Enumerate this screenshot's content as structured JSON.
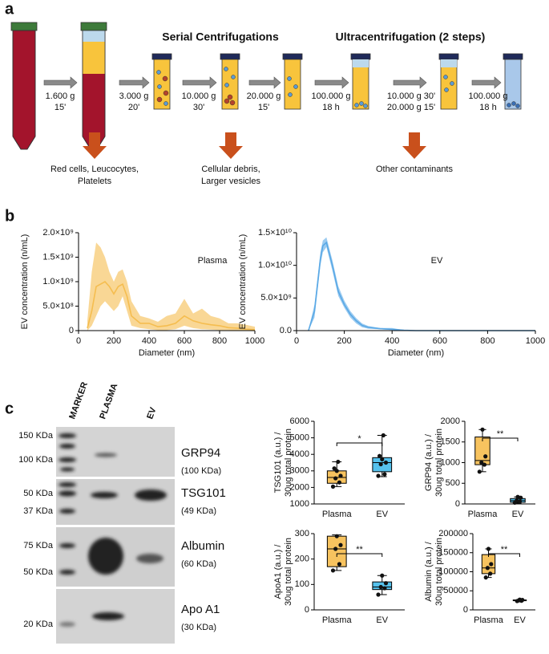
{
  "figure": {
    "labels": [
      "a",
      "b",
      "c"
    ]
  },
  "panel_a": {
    "headings": [
      "Serial Centrifugations",
      "Ultracentrifugation (2 steps)"
    ],
    "steps": [
      [
        "1.600 g",
        "15'"
      ],
      [
        "3.000 g",
        "20'"
      ],
      [
        "10.000 g",
        "30'"
      ],
      [
        "20.000 g",
        "15'"
      ],
      [
        "100.000 g",
        "18 h"
      ],
      [
        "10.000 g 30'",
        "20.000 g 15'"
      ],
      [
        "100.000 g",
        "18 h"
      ]
    ],
    "removed": [
      [
        "Red cells, Leucocytes,",
        "Platelets"
      ],
      [
        "Cellular debris,",
        "Larger vesicles"
      ],
      [
        "Other contaminants"
      ]
    ]
  },
  "panel_c": {
    "lanes": [
      "MARKER",
      "PLASMA",
      "EV"
    ],
    "blots": [
      {
        "name": "GRP94",
        "size": "(100 KDa)",
        "markers": [
          "150 KDa",
          "100 KDa"
        ]
      },
      {
        "name": "TSG101",
        "size": "(49 KDa)",
        "markers": [
          "50 KDa",
          "37 KDa"
        ]
      },
      {
        "name": "Albumin",
        "size": "(60 KDa)",
        "markers": [
          "75 KDa",
          "50 KDa"
        ]
      },
      {
        "name": "Apo A1",
        "size": "(30 KDa)",
        "markers": [
          "20 KDa"
        ]
      }
    ]
  },
  "chart_data": [
    {
      "type": "area",
      "title": "Plasma",
      "xlabel": "Diameter (nm)",
      "ylabel": "EV concentration (n/mL)",
      "color": "#f5bd4f",
      "x": [
        50,
        75,
        100,
        125,
        150,
        175,
        200,
        225,
        250,
        275,
        300,
        350,
        400,
        450,
        500,
        550,
        600,
        650,
        700,
        750,
        800,
        850,
        900,
        950,
        1000
      ],
      "values": [
        50000000.0,
        400000000.0,
        900000000.0,
        950000000.0,
        1000000000.0,
        900000000.0,
        750000000.0,
        900000000.0,
        950000000.0,
        700000000.0,
        300000000.0,
        150000000.0,
        150000000.0,
        80000000.0,
        100000000.0,
        150000000.0,
        300000000.0,
        200000000.0,
        150000000.0,
        120000000.0,
        100000000.0,
        60000000.0,
        50000000.0,
        30000000.0,
        20000000.0
      ],
      "upper": [
        200000000.0,
        1200000000.0,
        1800000000.0,
        1700000000.0,
        1500000000.0,
        1200000000.0,
        1000000000.0,
        1200000000.0,
        1250000000.0,
        1000000000.0,
        600000000.0,
        300000000.0,
        250000000.0,
        180000000.0,
        300000000.0,
        350000000.0,
        650000000.0,
        350000000.0,
        450000000.0,
        300000000.0,
        250000000.0,
        150000000.0,
        150000000.0,
        120000000.0,
        80000000.0
      ],
      "lower": [
        0,
        100000000.0,
        300000000.0,
        500000000.0,
        600000000.0,
        500000000.0,
        400000000.0,
        500000000.0,
        700000000.0,
        400000000.0,
        100000000.0,
        50000000.0,
        30000000.0,
        10000000.0,
        10000000.0,
        30000000.0,
        100000000.0,
        50000000.0,
        30000000.0,
        20000000.0,
        10000000.0,
        10000000.0,
        0,
        0,
        0
      ],
      "xlim": [
        0,
        1000
      ],
      "xticks": [
        0,
        200,
        400,
        600,
        800,
        1000
      ],
      "ylim": [
        0,
        2000000000.0
      ],
      "yticks": [
        0,
        {
          "value": 500000000.0,
          "label": "5.0×10⁸"
        },
        {
          "value": 1000000000.0,
          "label": "1.0×10⁹"
        },
        {
          "value": 1500000000.0,
          "label": "1.5×10⁹"
        },
        {
          "value": 2000000000.0,
          "label": "2.0×10⁹"
        }
      ]
    },
    {
      "type": "area",
      "title": "EV",
      "xlabel": "Diameter (nm)",
      "ylabel": "EV concentration (n/mL)",
      "color": "#5aa9e6",
      "x": [
        50,
        75,
        100,
        110,
        125,
        150,
        175,
        200,
        225,
        250,
        275,
        300,
        350,
        400,
        450,
        500,
        600,
        700,
        800,
        900,
        1000
      ],
      "values": [
        0,
        3000000000.0,
        11000000000.0,
        13000000000.0,
        13500000000.0,
        10000000000.0,
        6000000000.0,
        4000000000.0,
        2500000000.0,
        1500000000.0,
        800000000.0,
        500000000.0,
        300000000.0,
        200000000.0,
        50000000.0,
        0,
        0,
        0,
        0,
        0,
        0
      ],
      "upper": [
        100000000.0,
        4000000000.0,
        12000000000.0,
        13800000000.0,
        14300000000.0,
        10800000000.0,
        6800000000.0,
        4600000000.0,
        3000000000.0,
        1900000000.0,
        1100000000.0,
        700000000.0,
        400000000.0,
        400000000.0,
        100000000.0,
        50000000.0,
        20000000.0,
        20000000.0,
        20000000.0,
        20000000.0,
        20000000.0
      ],
      "lower": [
        0,
        2000000000.0,
        10000000000.0,
        12000000000.0,
        12800000000.0,
        9200000000.0,
        5300000000.0,
        3500000000.0,
        2000000000.0,
        1100000000.0,
        500000000.0,
        300000000.0,
        200000000.0,
        100000000.0,
        0,
        0,
        0,
        0,
        0,
        0,
        0
      ],
      "xlim": [
        0,
        1000
      ],
      "xticks": [
        0,
        200,
        400,
        600,
        800,
        1000
      ],
      "ylim": [
        0,
        15000000000.0
      ],
      "yticks": [
        {
          "value": 0,
          "label": "0.0"
        },
        {
          "value": 5000000000.0,
          "label": "5.0×10⁹"
        },
        {
          "value": 10000000000.0,
          "label": "1.0×10¹⁰"
        },
        {
          "value": 15000000000.0,
          "label": "1.5×10¹⁰"
        }
      ]
    },
    {
      "type": "box",
      "ylabel": [
        "TSG101 (a.u.) /",
        "30ug total protein"
      ],
      "categories": [
        "Plasma",
        "EV"
      ],
      "colors": [
        "#f7c35f",
        "#56c1ec"
      ],
      "significance": "*",
      "boxes": [
        {
          "min": 2050,
          "q1": 2250,
          "median": 2600,
          "q3": 3000,
          "max": 3550,
          "points": [
            2050,
            2300,
            2550,
            2700,
            3000,
            3150,
            3550
          ]
        },
        {
          "min": 2650,
          "q1": 2950,
          "median": 3500,
          "q3": 3800,
          "max": 5150,
          "points": [
            2700,
            2800,
            3400,
            3500,
            3700,
            3900,
            5150
          ]
        }
      ],
      "ylim": [
        1000,
        6000
      ],
      "yticks": [
        1000,
        2000,
        3000,
        4000,
        5000,
        6000
      ]
    },
    {
      "type": "box",
      "ylabel": [
        "GRP94 (a.u.) /",
        "30ug total protein"
      ],
      "categories": [
        "Plasma",
        "EV"
      ],
      "colors": [
        "#f7c35f",
        "#56c1ec"
      ],
      "significance": "**",
      "boxes": [
        {
          "min": 780,
          "q1": 950,
          "median": 1050,
          "q3": 1620,
          "max": 1800,
          "points": [
            780,
            950,
            1000,
            1150,
            1800
          ]
        },
        {
          "min": 20,
          "q1": 40,
          "median": 80,
          "q3": 130,
          "max": 170,
          "points": [
            30,
            60,
            80,
            150,
            170
          ]
        }
      ],
      "ylim": [
        0,
        2000
      ],
      "yticks": [
        0,
        500,
        1000,
        1500,
        2000
      ]
    },
    {
      "type": "box",
      "ylabel": [
        "ApoA1 (a.u.) /",
        "30ug total protein"
      ],
      "categories": [
        "Plasma",
        "EV"
      ],
      "colors": [
        "#f7c35f",
        "#56c1ec"
      ],
      "significance": "**",
      "boxes": [
        {
          "min": 155,
          "q1": 170,
          "median": 240,
          "q3": 290,
          "max": 295,
          "points": [
            155,
            180,
            240,
            255,
            290
          ]
        },
        {
          "min": 60,
          "q1": 80,
          "median": 90,
          "q3": 110,
          "max": 135,
          "points": [
            60,
            85,
            90,
            105,
            135
          ]
        }
      ],
      "ylim": [
        0,
        300
      ],
      "yticks": [
        0,
        100,
        200,
        300
      ]
    },
    {
      "type": "box",
      "ylabel": [
        "Albumin (a.u.) /",
        "30ug total protein"
      ],
      "categories": [
        "Plasma",
        "EV"
      ],
      "colors": [
        "#f7c35f",
        "#56c1ec"
      ],
      "significance": "**",
      "boxes": [
        {
          "min": 85000,
          "q1": 95000,
          "median": 110000,
          "q3": 145000,
          "max": 160000,
          "points": [
            85000,
            95000,
            110000,
            120000,
            160000
          ]
        },
        {
          "min": 23000,
          "q1": 24000,
          "median": 25000,
          "q3": 26000,
          "max": 27000,
          "points": [
            23000,
            24000,
            25000,
            26000,
            27000
          ]
        }
      ],
      "ylim": [
        0,
        200000
      ],
      "yticks": [
        0,
        50000,
        100000,
        150000,
        200000
      ]
    }
  ]
}
